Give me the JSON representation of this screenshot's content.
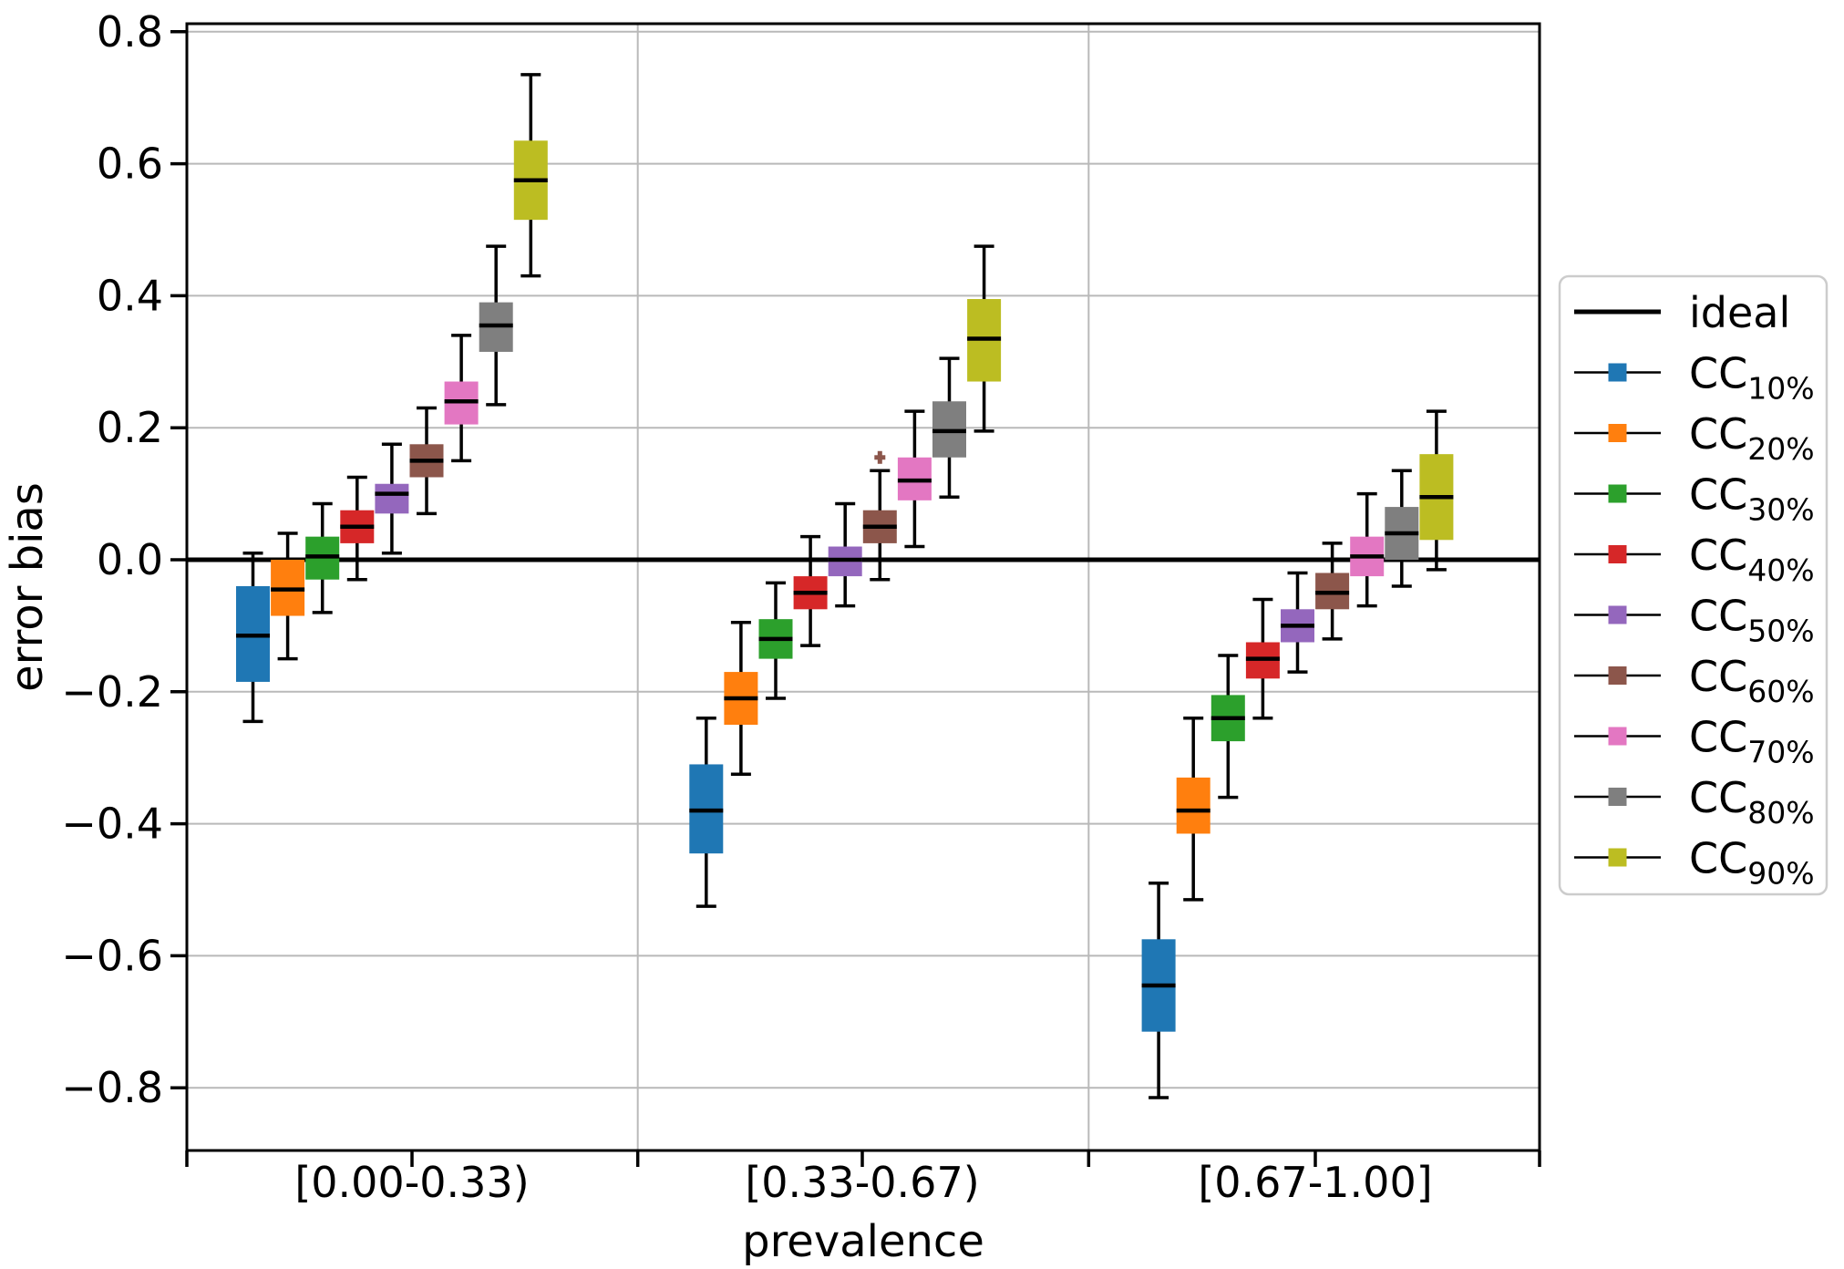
{
  "figure": {
    "background": "#ffffff",
    "grid_color": "#b9b9b9",
    "spine_color": "#000000",
    "legend_border_color": "#cccccc",
    "ideal_line_color": "#000000"
  },
  "chart_data": {
    "type": "grouped_boxplot",
    "title": "",
    "xlabel": "prevalence",
    "ylabel": "error bias",
    "categories": [
      "[0.00-0.33)",
      "[0.33-0.67)",
      "[0.67-1.00]"
    ],
    "ylim": [
      -0.895,
      0.812
    ],
    "yticks": [
      0.8,
      0.6,
      0.4,
      0.2,
      0.0,
      -0.2,
      -0.4,
      -0.6,
      -0.8
    ],
    "grid": true,
    "legend_position": "right-outside",
    "reference_line": {
      "label": "ideal",
      "y": 0.0,
      "color": "#000000"
    },
    "series": [
      {
        "name": "CC10",
        "label_main": "CC",
        "label_sub": "10%",
        "color": "#1f77b4",
        "boxes": [
          {
            "whislo": -0.245,
            "q1": -0.185,
            "med": -0.115,
            "q3": -0.04,
            "whishi": 0.01,
            "outliers": []
          },
          {
            "whislo": -0.525,
            "q1": -0.445,
            "med": -0.38,
            "q3": -0.31,
            "whishi": -0.24,
            "outliers": []
          },
          {
            "whislo": -0.815,
            "q1": -0.715,
            "med": -0.645,
            "q3": -0.575,
            "whishi": -0.49,
            "outliers": []
          }
        ]
      },
      {
        "name": "CC20",
        "label_main": "CC",
        "label_sub": "20%",
        "color": "#ff7f0e",
        "boxes": [
          {
            "whislo": -0.15,
            "q1": -0.085,
            "med": -0.045,
            "q3": 0.0,
            "whishi": 0.04,
            "outliers": []
          },
          {
            "whislo": -0.325,
            "q1": -0.25,
            "med": -0.21,
            "q3": -0.17,
            "whishi": -0.095,
            "outliers": []
          },
          {
            "whislo": -0.515,
            "q1": -0.415,
            "med": -0.38,
            "q3": -0.33,
            "whishi": -0.24,
            "outliers": []
          }
        ]
      },
      {
        "name": "CC30",
        "label_main": "CC",
        "label_sub": "30%",
        "color": "#2ca02c",
        "boxes": [
          {
            "whislo": -0.08,
            "q1": -0.03,
            "med": 0.005,
            "q3": 0.035,
            "whishi": 0.085,
            "outliers": []
          },
          {
            "whislo": -0.21,
            "q1": -0.15,
            "med": -0.12,
            "q3": -0.09,
            "whishi": -0.035,
            "outliers": []
          },
          {
            "whislo": -0.36,
            "q1": -0.275,
            "med": -0.24,
            "q3": -0.205,
            "whishi": -0.145,
            "outliers": []
          }
        ]
      },
      {
        "name": "CC40",
        "label_main": "CC",
        "label_sub": "40%",
        "color": "#d62728",
        "boxes": [
          {
            "whislo": -0.03,
            "q1": 0.025,
            "med": 0.05,
            "q3": 0.075,
            "whishi": 0.125,
            "outliers": []
          },
          {
            "whislo": -0.13,
            "q1": -0.075,
            "med": -0.05,
            "q3": -0.025,
            "whishi": 0.035,
            "outliers": []
          },
          {
            "whislo": -0.24,
            "q1": -0.18,
            "med": -0.15,
            "q3": -0.125,
            "whishi": -0.06,
            "outliers": []
          }
        ]
      },
      {
        "name": "CC50",
        "label_main": "CC",
        "label_sub": "50%",
        "color": "#9467bd",
        "boxes": [
          {
            "whislo": 0.01,
            "q1": 0.07,
            "med": 0.1,
            "q3": 0.115,
            "whishi": 0.175,
            "outliers": []
          },
          {
            "whislo": -0.07,
            "q1": -0.025,
            "med": 0.0,
            "q3": 0.02,
            "whishi": 0.085,
            "outliers": []
          },
          {
            "whislo": -0.17,
            "q1": -0.125,
            "med": -0.1,
            "q3": -0.075,
            "whishi": -0.02,
            "outliers": []
          }
        ]
      },
      {
        "name": "CC60",
        "label_main": "CC",
        "label_sub": "60%",
        "color": "#8c564b",
        "boxes": [
          {
            "whislo": 0.07,
            "q1": 0.125,
            "med": 0.15,
            "q3": 0.175,
            "whishi": 0.23,
            "outliers": []
          },
          {
            "whislo": -0.03,
            "q1": 0.025,
            "med": 0.05,
            "q3": 0.075,
            "whishi": 0.135,
            "outliers": [
              0.155
            ]
          },
          {
            "whislo": -0.12,
            "q1": -0.075,
            "med": -0.05,
            "q3": -0.02,
            "whishi": 0.025,
            "outliers": []
          }
        ]
      },
      {
        "name": "CC70",
        "label_main": "CC",
        "label_sub": "70%",
        "color": "#e377c2",
        "boxes": [
          {
            "whislo": 0.15,
            "q1": 0.205,
            "med": 0.24,
            "q3": 0.27,
            "whishi": 0.34,
            "outliers": []
          },
          {
            "whislo": 0.02,
            "q1": 0.09,
            "med": 0.12,
            "q3": 0.155,
            "whishi": 0.225,
            "outliers": []
          },
          {
            "whislo": -0.07,
            "q1": -0.025,
            "med": 0.005,
            "q3": 0.035,
            "whishi": 0.1,
            "outliers": []
          }
        ]
      },
      {
        "name": "CC80",
        "label_main": "CC",
        "label_sub": "80%",
        "color": "#7f7f7f",
        "boxes": [
          {
            "whislo": 0.235,
            "q1": 0.315,
            "med": 0.355,
            "q3": 0.39,
            "whishi": 0.475,
            "outliers": []
          },
          {
            "whislo": 0.095,
            "q1": 0.155,
            "med": 0.195,
            "q3": 0.24,
            "whishi": 0.305,
            "outliers": []
          },
          {
            "whislo": -0.04,
            "q1": 0.0,
            "med": 0.04,
            "q3": 0.08,
            "whishi": 0.135,
            "outliers": []
          }
        ]
      },
      {
        "name": "CC90",
        "label_main": "CC",
        "label_sub": "90%",
        "color": "#bcbd22",
        "boxes": [
          {
            "whislo": 0.43,
            "q1": 0.515,
            "med": 0.575,
            "q3": 0.635,
            "whishi": 0.735,
            "outliers": []
          },
          {
            "whislo": 0.195,
            "q1": 0.27,
            "med": 0.335,
            "q3": 0.395,
            "whishi": 0.475,
            "outliers": []
          },
          {
            "whislo": -0.015,
            "q1": 0.03,
            "med": 0.095,
            "q3": 0.16,
            "whishi": 0.225,
            "outliers": []
          }
        ]
      }
    ]
  }
}
